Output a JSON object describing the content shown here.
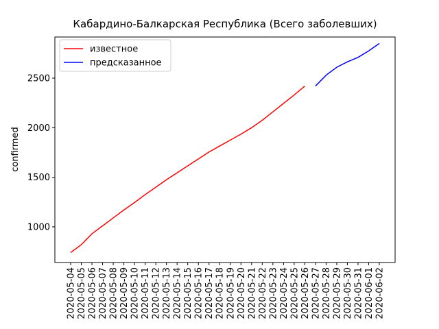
{
  "chart_data": {
    "type": "line",
    "title": "Кабардино-Балкарская Республика (Всего заболевших)",
    "y_label": "confirmed",
    "categories": [
      "2020-05-04",
      "2020-05-05",
      "2020-05-06",
      "2020-05-07",
      "2020-05-08",
      "2020-05-09",
      "2020-05-10",
      "2020-05-11",
      "2020-05-12",
      "2020-05-13",
      "2020-05-14",
      "2020-05-15",
      "2020-05-16",
      "2020-05-17",
      "2020-05-18",
      "2020-05-19",
      "2020-05-20",
      "2020-05-21",
      "2020-05-22",
      "2020-05-23",
      "2020-05-24",
      "2020-05-25",
      "2020-05-26",
      "2020-05-27",
      "2020-05-28",
      "2020-05-29",
      "2020-05-30",
      "2020-05-31",
      "2020-06-01",
      "2020-06-02"
    ],
    "series": [
      {
        "name": "известное",
        "color": "#ff0000",
        "values": [
          740,
          820,
          930,
          1010,
          1090,
          1170,
          1245,
          1325,
          1400,
          1475,
          1545,
          1615,
          1685,
          1755,
          1815,
          1875,
          1935,
          2000,
          2075,
          2160,
          2245,
          2330,
          2420,
          null,
          null,
          null,
          null,
          null,
          null,
          null
        ]
      },
      {
        "name": "предсказанное",
        "color": "#0000ff",
        "values": [
          null,
          null,
          null,
          null,
          null,
          null,
          null,
          null,
          null,
          null,
          null,
          null,
          null,
          null,
          null,
          null,
          null,
          null,
          null,
          null,
          null,
          null,
          null,
          2420,
          2530,
          2610,
          2665,
          2710,
          2775,
          2850
        ]
      }
    ],
    "ylim": [
      640,
      2915
    ],
    "yticks": [
      1000,
      1500,
      2000,
      2500
    ],
    "legend": "upper left",
    "grid": false
  }
}
